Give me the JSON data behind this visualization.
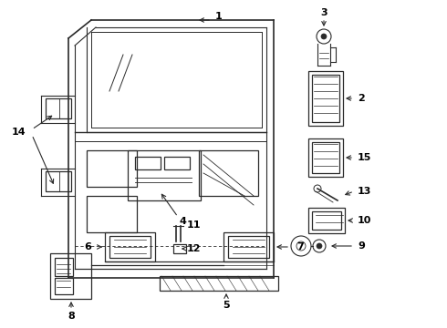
{
  "bg_color": "#ffffff",
  "fig_width": 4.9,
  "fig_height": 3.6,
  "dpi": 100,
  "line_color": "#2a2a2a",
  "font_size": 8,
  "text_color": "#000000"
}
